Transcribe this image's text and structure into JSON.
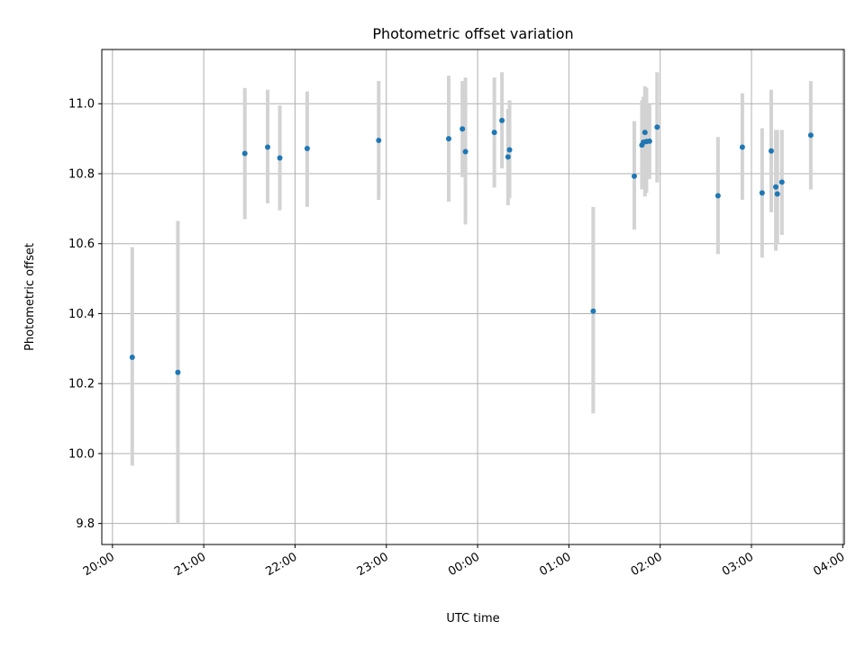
{
  "chart_data": {
    "type": "scatter",
    "title": "Photometric offset variation",
    "xlabel": "UTC time",
    "ylabel": "Photometric offset",
    "xlim": [
      "19:53",
      "04:01"
    ],
    "ylim": [
      9.74,
      11.155
    ],
    "x_ticks": [
      "20:00",
      "21:00",
      "22:00",
      "23:00",
      "00:00",
      "01:00",
      "02:00",
      "03:00",
      "04:00"
    ],
    "y_ticks": [
      "9.8",
      "10.0",
      "10.2",
      "10.4",
      "10.6",
      "10.8",
      "11.0"
    ],
    "grid": true,
    "colors": {
      "point": "#1f77b4",
      "errorbar": "#d3d3d3",
      "grid": "#b0b0b0"
    },
    "points": [
      {
        "t": "20:13",
        "y": 10.275,
        "lo": 9.965,
        "hi": 10.59
      },
      {
        "t": "20:43",
        "y": 10.232,
        "lo": 9.8,
        "hi": 10.665
      },
      {
        "t": "21:27",
        "y": 10.858,
        "lo": 10.67,
        "hi": 11.045
      },
      {
        "t": "21:42",
        "y": 10.876,
        "lo": 10.715,
        "hi": 11.04
      },
      {
        "t": "21:50",
        "y": 10.845,
        "lo": 10.695,
        "hi": 10.995
      },
      {
        "t": "22:08",
        "y": 10.872,
        "lo": 10.705,
        "hi": 11.035
      },
      {
        "t": "22:55",
        "y": 10.895,
        "lo": 10.725,
        "hi": 11.065
      },
      {
        "t": "23:41",
        "y": 10.9,
        "lo": 10.72,
        "hi": 11.08
      },
      {
        "t": "23:50",
        "y": 10.928,
        "lo": 10.79,
        "hi": 11.065
      },
      {
        "t": "23:52",
        "y": 10.863,
        "lo": 10.655,
        "hi": 11.075
      },
      {
        "t": "00:11",
        "y": 10.918,
        "lo": 10.76,
        "hi": 11.075
      },
      {
        "t": "00:16",
        "y": 10.952,
        "lo": 10.815,
        "hi": 11.09
      },
      {
        "t": "00:20",
        "y": 10.848,
        "lo": 10.71,
        "hi": 10.985
      },
      {
        "t": "00:21",
        "y": 10.868,
        "lo": 10.73,
        "hi": 11.01
      },
      {
        "t": "01:16",
        "y": 10.407,
        "lo": 10.115,
        "hi": 10.705
      },
      {
        "t": "01:43",
        "y": 10.793,
        "lo": 10.64,
        "hi": 10.95
      },
      {
        "t": "01:48",
        "y": 10.882,
        "lo": 10.755,
        "hi": 11.01
      },
      {
        "t": "01:49",
        "y": 10.89,
        "lo": 10.765,
        "hi": 11.02
      },
      {
        "t": "01:50",
        "y": 10.918,
        "lo": 10.735,
        "hi": 11.05
      },
      {
        "t": "01:51",
        "y": 10.892,
        "lo": 10.745,
        "hi": 11.045
      },
      {
        "t": "01:53",
        "y": 10.893,
        "lo": 10.785,
        "hi": 11.0
      },
      {
        "t": "01:58",
        "y": 10.933,
        "lo": 10.775,
        "hi": 11.09
      },
      {
        "t": "02:38",
        "y": 10.737,
        "lo": 10.57,
        "hi": 10.905
      },
      {
        "t": "02:54",
        "y": 10.876,
        "lo": 10.725,
        "hi": 11.03
      },
      {
        "t": "03:07",
        "y": 10.745,
        "lo": 10.56,
        "hi": 10.93
      },
      {
        "t": "03:13",
        "y": 10.865,
        "lo": 10.69,
        "hi": 11.04
      },
      {
        "t": "03:16",
        "y": 10.762,
        "lo": 10.58,
        "hi": 10.925
      },
      {
        "t": "03:17",
        "y": 10.742,
        "lo": 10.6,
        "hi": 10.925
      },
      {
        "t": "03:20",
        "y": 10.776,
        "lo": 10.625,
        "hi": 10.925
      },
      {
        "t": "03:39",
        "y": 10.91,
        "lo": 10.755,
        "hi": 11.065
      }
    ]
  }
}
